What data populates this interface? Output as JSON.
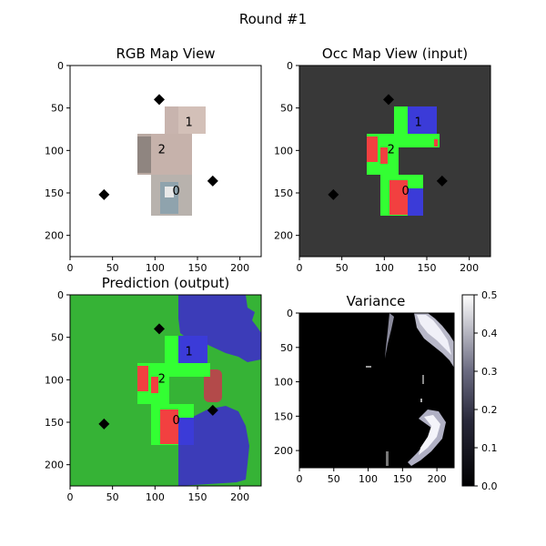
{
  "suptitle": "Round #1",
  "colors": {
    "background": "#ffffff",
    "occ_bg": "#383838",
    "free": "#33ff33",
    "occupied": "#f24040",
    "unknown_blue": "#3b3bd8",
    "pred_free": "#36b336",
    "pred_blue": "#3c3cb8",
    "marker": "#000000"
  },
  "axes_ticks": {
    "x": [
      0,
      50,
      100,
      150,
      200
    ],
    "y": [
      0,
      50,
      100,
      150,
      200
    ]
  },
  "panels": [
    {
      "id": "rgb",
      "title": "RGB Map View"
    },
    {
      "id": "occ",
      "title": "Occ Map View (input)"
    },
    {
      "id": "pred",
      "title": "Prediction (output)"
    },
    {
      "id": "var",
      "title": "Variance"
    }
  ],
  "chart_data": {
    "type": "heatmap",
    "grid_size": [
      225,
      225
    ],
    "xlim": [
      0,
      225
    ],
    "ylim": [
      225,
      0
    ],
    "waypoint_labels": [
      {
        "label": "1",
        "x": 140,
        "y": 67
      },
      {
        "label": "2",
        "x": 108,
        "y": 99
      },
      {
        "label": "0",
        "x": 125,
        "y": 148
      }
    ],
    "diamond_markers": [
      {
        "x": 105,
        "y": 40
      },
      {
        "x": 40,
        "y": 152
      },
      {
        "x": 168,
        "y": 136
      }
    ],
    "colorbar": {
      "min": 0,
      "max": 0.5,
      "ticks": [
        "0.0",
        "0.1",
        "0.2",
        "0.3",
        "0.4",
        "0.5"
      ]
    }
  }
}
